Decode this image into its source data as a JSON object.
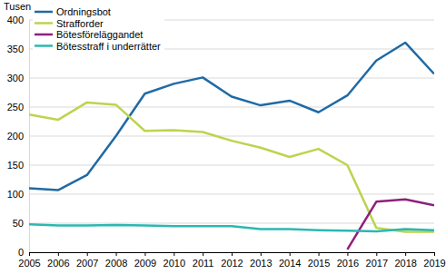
{
  "chart_data": {
    "type": "line",
    "y_label": "Tusen",
    "categories": [
      "2005",
      "2006",
      "2007",
      "2008",
      "2009",
      "2010",
      "2011",
      "2012",
      "2013",
      "2014",
      "2015",
      "2016",
      "2017",
      "2018",
      "2019"
    ],
    "series": [
      {
        "name": "Ordningsbot",
        "color": "#1f6aa5",
        "values": [
          110,
          107,
          133,
          200,
          273,
          290,
          301,
          268,
          253,
          261,
          241,
          270,
          330,
          361,
          307
        ]
      },
      {
        "name": "Strafforder",
        "color": "#bcd44e",
        "values": [
          237,
          228,
          258,
          254,
          209,
          210,
          207,
          192,
          180,
          164,
          178,
          150,
          42,
          35,
          35
        ]
      },
      {
        "name": "Bötesföreläggandet",
        "color": "#8e1f7c",
        "values": [
          null,
          null,
          null,
          null,
          null,
          null,
          null,
          null,
          null,
          null,
          null,
          5,
          87,
          91,
          81
        ]
      },
      {
        "name": "Bötesstraff i underrätter",
        "color": "#2bb8b0",
        "values": [
          48,
          46,
          46,
          47,
          46,
          45,
          45,
          45,
          40,
          40,
          38,
          37,
          36,
          40,
          38
        ]
      }
    ],
    "ylim": [
      0,
      400
    ],
    "yticks": [
      0,
      50,
      100,
      150,
      200,
      250,
      300,
      350,
      400
    ],
    "grid": true,
    "legend": "top-left"
  }
}
